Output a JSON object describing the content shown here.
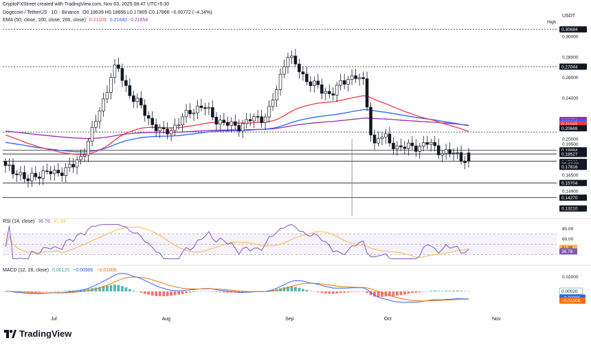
{
  "header": {
    "credit": "CryptoFXStreet created with TradingView.com, Nov 03, 2025 08:47 UTC+5:30",
    "symbol": "Dogecoin / TetherUS · 1D · Binance",
    "ohlc": "O0.18639 H0.18666 L0.17805 C0.17866 −0.00772 (−4.14%)",
    "ema_label": "EMA (50, close, 100, close, 200, close)",
    "ema_values": [
      "0.21103",
      "0.21640",
      "0.21654"
    ],
    "currency": "USDT",
    "high_label": "High"
  },
  "colors": {
    "up": "#ffffff",
    "down": "#131722",
    "ema50": "#f23645",
    "ema100": "#2962ff",
    "ema200": "#9c27b0",
    "rsi": "#7e57c2",
    "rsi_ma": "#ffb74d",
    "macd": "#2962ff",
    "signal": "#ff6d00",
    "hist_up": "#26a69a",
    "hist_down": "#ef5350"
  },
  "brand": "TradingView",
  "chart_data": [
    {
      "type": "candlestick",
      "ylim": [
        0.125,
        0.31
      ],
      "y_ticks": [
        "0.30000",
        "0.28000",
        "0.26000",
        "0.24000",
        "0.20000",
        "0.19500",
        "0.16500",
        "0.14900"
      ],
      "x_labels": [
        "Jul",
        "Aug",
        "Sep",
        "Oct",
        "Nov"
      ],
      "price_labels": [
        {
          "value": "0.30684",
          "kind": "level"
        },
        {
          "value": "0.27044",
          "kind": "level"
        },
        {
          "value": "0.21654",
          "kind": "ema200"
        },
        {
          "value": "0.21640",
          "kind": "ema100"
        },
        {
          "value": "0.21103",
          "kind": "ema50"
        },
        {
          "value": "0.20669",
          "kind": "level"
        },
        {
          "value": "0.18884",
          "kind": "level"
        },
        {
          "value": "0.18527",
          "kind": "level"
        },
        {
          "value": "0.17866",
          "kind": "last"
        },
        {
          "value": "20:43:00",
          "kind": "timer"
        },
        {
          "value": "0.17816",
          "kind": "level"
        },
        {
          "value": "0.15704",
          "kind": "level"
        },
        {
          "value": "0.14270",
          "kind": "level"
        },
        {
          "value": "0.13210",
          "kind": "level"
        }
      ],
      "horizontal_levels": [
        0.30684,
        0.27044,
        0.20669,
        0.18884,
        0.18527,
        0.17816,
        0.15704,
        0.1427
      ]
    },
    {
      "type": "line",
      "title": "RSI (14, close)",
      "values_label": [
        "36.76",
        "41.33"
      ],
      "ylim": [
        20,
        90
      ],
      "y_ticks": [
        "80.00",
        "60.00"
      ],
      "band": [
        30,
        70
      ],
      "last": [
        "41.35",
        "36.78"
      ]
    },
    {
      "type": "bar",
      "title": "MACD (12, 26, close)",
      "values_label": [
        "0.00120",
        "−0.00986",
        "−0.01006"
      ],
      "ylim": [
        -0.03,
        0.03
      ],
      "y_ticks": [
        "0.02000"
      ],
      "last": [
        "0.00020",
        "−0.00986",
        "−0.01006"
      ]
    }
  ]
}
